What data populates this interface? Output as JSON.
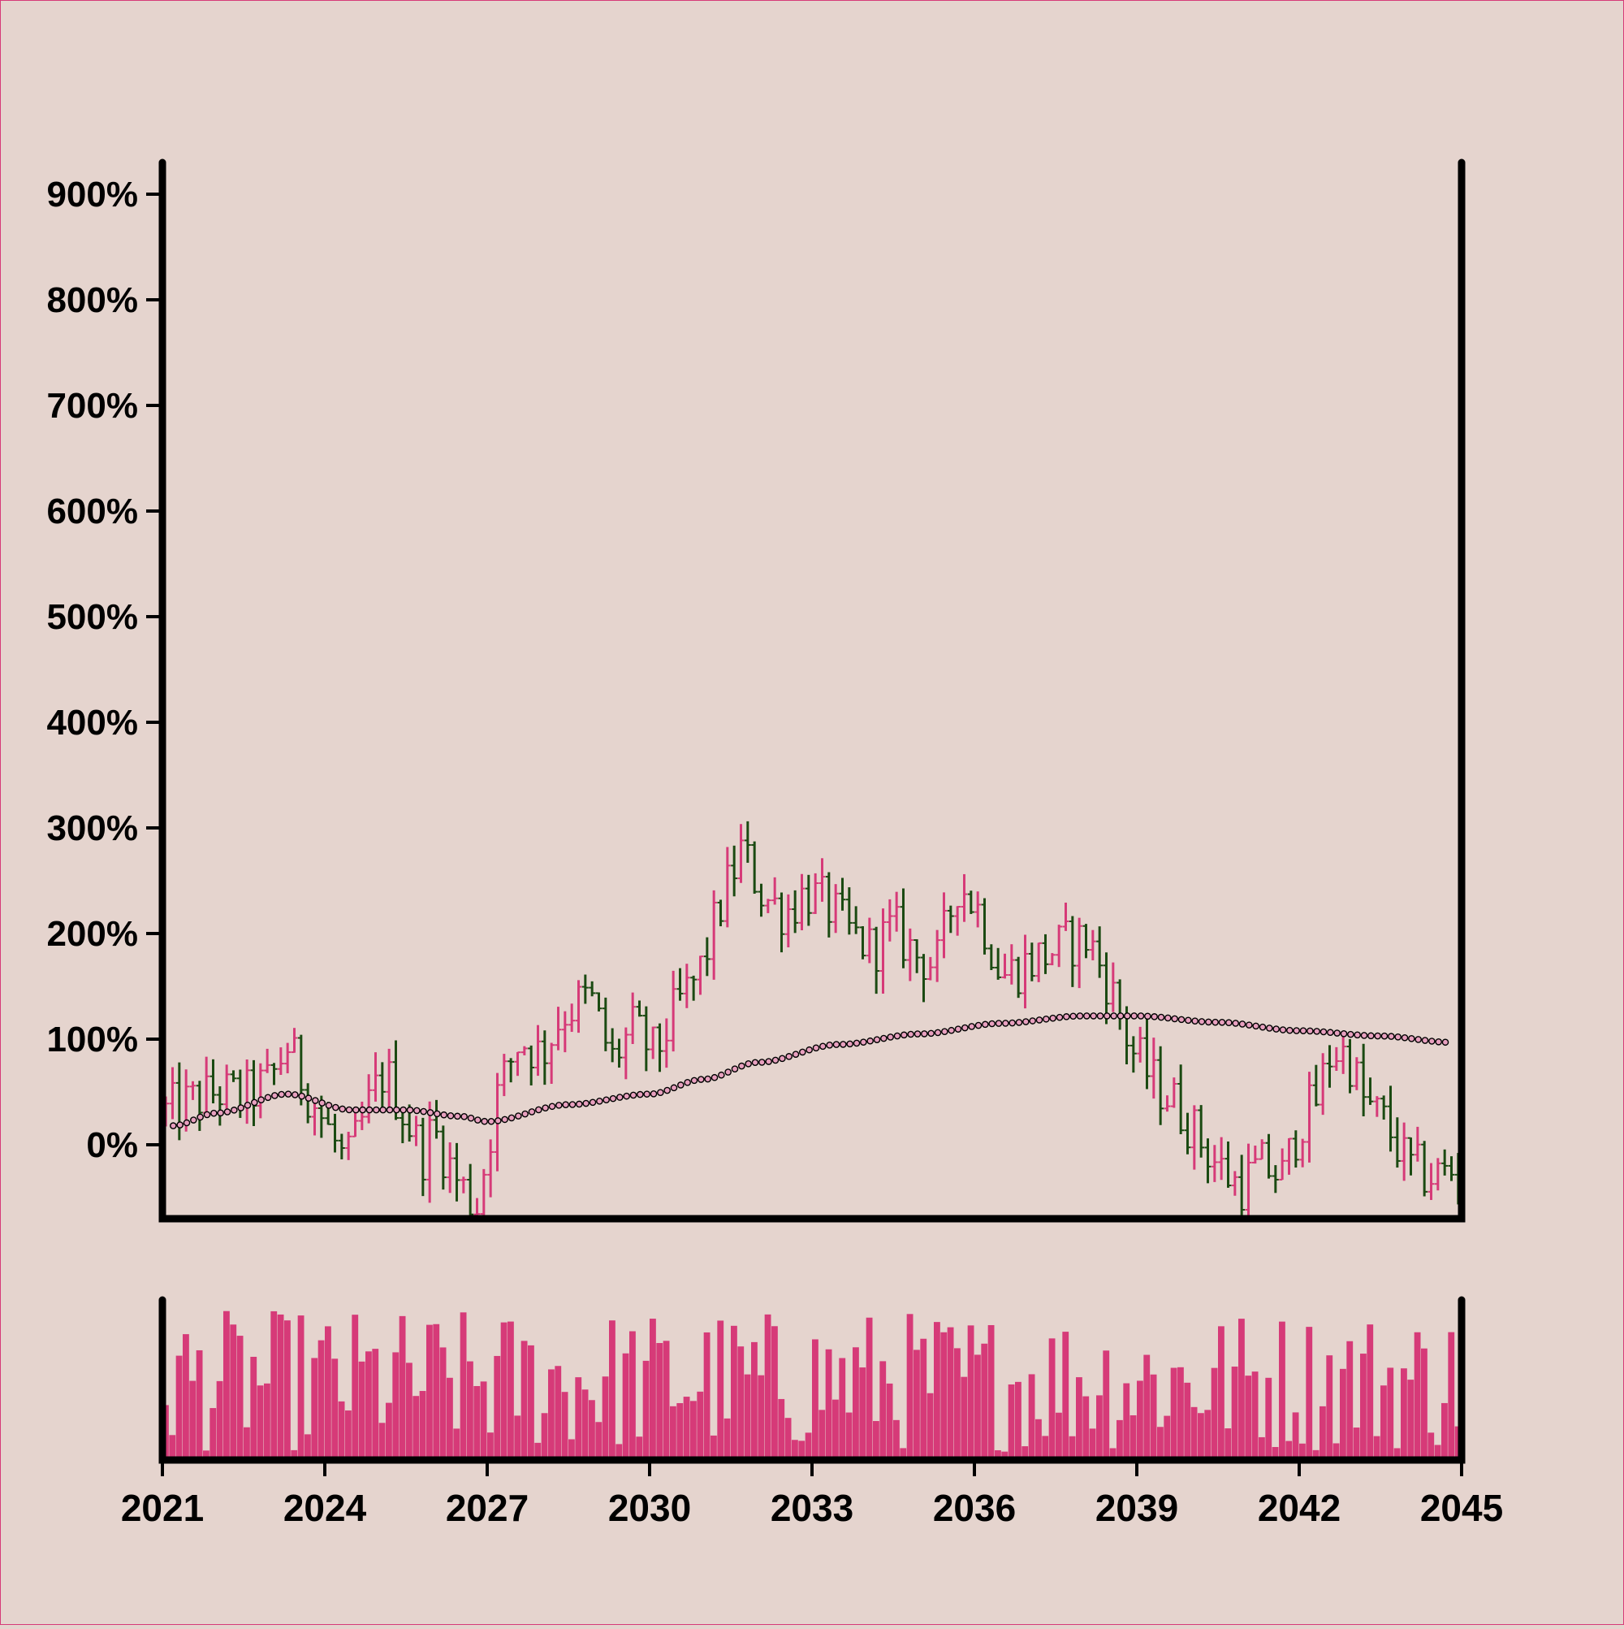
{
  "colors": {
    "background": "#e5d4ce",
    "border": "#d63a78",
    "up": "#d63a78",
    "down": "#1b4a12",
    "moving_average_marker": "#e8a0bf",
    "volume": "#d63a78",
    "axis": "#000000"
  },
  "chart_data": {
    "type": "ohlc",
    "x_axis": {
      "range": [
        2021,
        2045
      ],
      "ticks": [
        2021,
        2024,
        2027,
        2030,
        2033,
        2036,
        2039,
        2042,
        2045
      ],
      "tick_labels": [
        "2021",
        "2024",
        "2027",
        "2030",
        "2033",
        "2036",
        "2039",
        "2042",
        "2045"
      ]
    },
    "y_axis": {
      "range": [
        -70,
        930
      ],
      "ticks": [
        0,
        100,
        200,
        300,
        400,
        500,
        600,
        700,
        800,
        900
      ],
      "tick_labels": [
        "0%",
        "100%",
        "200%",
        "300%",
        "400%",
        "500%",
        "600%",
        "700%",
        "800%",
        "900%"
      ],
      "unit": "%"
    },
    "grid": false,
    "legend": "none",
    "price_trend_points": [
      [
        2021.0,
        30
      ],
      [
        2021.5,
        40
      ],
      [
        2022.0,
        50
      ],
      [
        2022.5,
        45
      ],
      [
        2023.0,
        60
      ],
      [
        2023.3,
        95
      ],
      [
        2023.6,
        60
      ],
      [
        2024.0,
        20
      ],
      [
        2024.4,
        -20
      ],
      [
        2024.8,
        35
      ],
      [
        2025.1,
        70
      ],
      [
        2025.5,
        25
      ],
      [
        2025.8,
        -10
      ],
      [
        2026.0,
        15
      ],
      [
        2026.4,
        -30
      ],
      [
        2026.8,
        -60
      ],
      [
        2027.2,
        50
      ],
      [
        2027.6,
        100
      ],
      [
        2028.0,
        85
      ],
      [
        2028.4,
        125
      ],
      [
        2028.9,
        140
      ],
      [
        2029.3,
        80
      ],
      [
        2029.7,
        110
      ],
      [
        2030.1,
        85
      ],
      [
        2030.5,
        130
      ],
      [
        2030.9,
        160
      ],
      [
        2031.3,
        225
      ],
      [
        2031.7,
        280
      ],
      [
        2032.1,
        235
      ],
      [
        2032.5,
        220
      ],
      [
        2032.9,
        240
      ],
      [
        2033.3,
        225
      ],
      [
        2033.7,
        200
      ],
      [
        2034.1,
        185
      ],
      [
        2034.5,
        205
      ],
      [
        2034.9,
        180
      ],
      [
        2035.3,
        170
      ],
      [
        2035.7,
        250
      ],
      [
        2036.1,
        220
      ],
      [
        2036.5,
        160
      ],
      [
        2036.9,
        170
      ],
      [
        2037.3,
        180
      ],
      [
        2037.7,
        190
      ],
      [
        2038.1,
        195
      ],
      [
        2038.5,
        150
      ],
      [
        2038.9,
        90
      ],
      [
        2039.3,
        60
      ],
      [
        2039.7,
        40
      ],
      [
        2040.1,
        10
      ],
      [
        2040.5,
        -20
      ],
      [
        2040.9,
        -40
      ],
      [
        2041.3,
        -20
      ],
      [
        2041.7,
        -30
      ],
      [
        2042.0,
        20
      ],
      [
        2042.3,
        40
      ],
      [
        2042.6,
        90
      ],
      [
        2042.9,
        85
      ],
      [
        2043.2,
        40
      ],
      [
        2043.6,
        20
      ],
      [
        2044.0,
        -20
      ],
      [
        2044.4,
        -30
      ],
      [
        2044.8,
        -25
      ],
      [
        2045.0,
        -30
      ]
    ],
    "moving_average_points": [
      [
        2021.2,
        18
      ],
      [
        2022.0,
        30
      ],
      [
        2023.3,
        48
      ],
      [
        2024.5,
        33
      ],
      [
        2025.5,
        33
      ],
      [
        2026.5,
        27
      ],
      [
        2027.0,
        22
      ],
      [
        2028.5,
        38
      ],
      [
        2030.0,
        48
      ],
      [
        2031.0,
        62
      ],
      [
        2032.0,
        78
      ],
      [
        2033.5,
        95
      ],
      [
        2035.0,
        105
      ],
      [
        2036.5,
        115
      ],
      [
        2038.0,
        122
      ],
      [
        2039.0,
        122
      ],
      [
        2040.5,
        116
      ],
      [
        2042.0,
        108
      ],
      [
        2043.5,
        103
      ],
      [
        2044.8,
        97
      ]
    ]
  }
}
